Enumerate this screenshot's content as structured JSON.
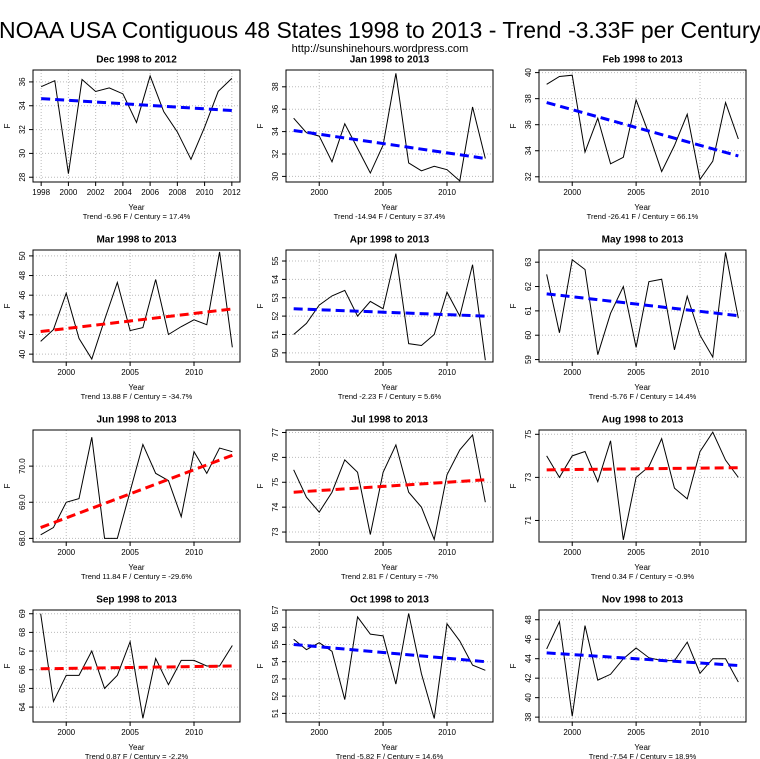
{
  "title": "NOAA USA Contiguous 48 States 1998 to 2013 - Trend -3.33F per Century",
  "subtitle": "http://sunshinehours.wordpress.com",
  "chart_data": [
    {
      "type": "line",
      "title": "Dec 1998 to 2012",
      "xlabel": "Year",
      "ylabel": "F",
      "grid": true,
      "color": "#000000",
      "x": [
        1998,
        1999,
        2000,
        2001,
        2002,
        2003,
        2004,
        2005,
        2006,
        2007,
        2008,
        2009,
        2010,
        2011,
        2012
      ],
      "values": [
        35.6,
        36.1,
        28.3,
        36.2,
        35.2,
        35.5,
        35.0,
        32.6,
        36.5,
        33.5,
        31.8,
        29.5,
        32.2,
        35.2,
        36.3
      ],
      "trend": {
        "x": [
          1998,
          2012
        ],
        "values": [
          34.6,
          33.6
        ],
        "color": "#0000ff"
      },
      "note": "Trend -6.96 F / Century = 17.4%",
      "xlim": [
        1997.4,
        2012.6
      ],
      "xticks": [
        1998,
        2000,
        2002,
        2004,
        2006,
        2008,
        2010,
        2012
      ],
      "ylim": [
        27.6,
        37.0
      ],
      "yticks": [
        28,
        30,
        32,
        34,
        36
      ]
    },
    {
      "type": "line",
      "title": "Jan 1998 to 2013",
      "xlabel": "Year",
      "ylabel": "F",
      "grid": true,
      "color": "#000000",
      "x": [
        1998,
        1999,
        2000,
        2001,
        2002,
        2003,
        2004,
        2005,
        2006,
        2007,
        2008,
        2009,
        2010,
        2011,
        2012,
        2013
      ],
      "values": [
        35.2,
        33.9,
        33.6,
        31.3,
        34.7,
        32.5,
        30.3,
        32.8,
        39.2,
        31.2,
        30.5,
        30.9,
        30.6,
        29.6,
        36.2,
        31.6
      ],
      "trend": {
        "x": [
          1998,
          2013
        ],
        "values": [
          34.1,
          31.6
        ],
        "color": "#0000ff"
      },
      "note": "Trend -14.94 F / Century = 37.4%",
      "xlim": [
        1997.4,
        2013.6
      ],
      "xticks": [
        2000,
        2005,
        2010
      ],
      "ylim": [
        29.5,
        39.5
      ],
      "yticks": [
        30,
        32,
        34,
        36,
        38
      ]
    },
    {
      "type": "line",
      "title": "Feb 1998 to 2013",
      "xlabel": "Year",
      "ylabel": "F",
      "grid": true,
      "color": "#000000",
      "x": [
        1998,
        1999,
        2000,
        2001,
        2002,
        2003,
        2004,
        2005,
        2006,
        2007,
        2008,
        2009,
        2010,
        2011,
        2012,
        2013
      ],
      "values": [
        39.1,
        39.7,
        39.8,
        33.9,
        36.5,
        33.0,
        33.5,
        37.9,
        35.3,
        32.4,
        34.4,
        36.8,
        31.8,
        33.2,
        37.7,
        34.9
      ],
      "trend": {
        "x": [
          1998,
          2013
        ],
        "values": [
          37.7,
          33.6
        ],
        "color": "#0000ff"
      },
      "note": "Trend -26.41 F / Century = 66.1%",
      "xlim": [
        1997.4,
        2013.6
      ],
      "xticks": [
        2000,
        2005,
        2010
      ],
      "ylim": [
        31.6,
        40.2
      ],
      "yticks": [
        32,
        34,
        36,
        38,
        40
      ]
    },
    {
      "type": "line",
      "title": "Mar 1998 to 2013",
      "xlabel": "Year",
      "ylabel": "F",
      "grid": true,
      "color": "#000000",
      "x": [
        1998,
        1999,
        2000,
        2001,
        2002,
        2003,
        2004,
        2005,
        2006,
        2007,
        2008,
        2009,
        2010,
        2011,
        2012,
        2013
      ],
      "values": [
        41.3,
        42.5,
        46.2,
        41.6,
        39.5,
        43.5,
        47.3,
        42.4,
        42.7,
        47.6,
        42.0,
        42.8,
        43.5,
        43.0,
        50.4,
        40.7
      ],
      "trend": {
        "x": [
          1998,
          2013
        ],
        "values": [
          42.3,
          44.6
        ],
        "color": "#ff0000"
      },
      "note": "Trend 13.88 F / Century = -34.7%",
      "xlim": [
        1997.4,
        2013.6
      ],
      "xticks": [
        2000,
        2005,
        2010
      ],
      "ylim": [
        39.2,
        50.6
      ],
      "yticks": [
        40,
        42,
        44,
        46,
        48,
        50
      ]
    },
    {
      "type": "line",
      "title": "Apr 1998 to 2013",
      "xlabel": "Year",
      "ylabel": "F",
      "grid": true,
      "color": "#000000",
      "x": [
        1998,
        1999,
        2000,
        2001,
        2002,
        2003,
        2004,
        2005,
        2006,
        2007,
        2008,
        2009,
        2010,
        2011,
        2012,
        2013
      ],
      "values": [
        51.0,
        51.6,
        52.6,
        53.1,
        53.4,
        52.0,
        52.8,
        52.4,
        55.4,
        50.5,
        50.4,
        51.0,
        53.3,
        52.0,
        54.8,
        49.6
      ],
      "trend": {
        "x": [
          1998,
          2013
        ],
        "values": [
          52.4,
          52.0
        ],
        "color": "#0000ff"
      },
      "note": "Trend -2.23 F / Century = 5.6%",
      "xlim": [
        1997.4,
        2013.6
      ],
      "xticks": [
        2000,
        2005,
        2010
      ],
      "ylim": [
        49.5,
        55.6
      ],
      "yticks": [
        50,
        51,
        52,
        53,
        54,
        55
      ]
    },
    {
      "type": "line",
      "title": "May 1998 to 2013",
      "xlabel": "Year",
      "ylabel": "F",
      "grid": true,
      "color": "#000000",
      "x": [
        1998,
        1999,
        2000,
        2001,
        2002,
        2003,
        2004,
        2005,
        2006,
        2007,
        2008,
        2009,
        2010,
        2011,
        2012,
        2013
      ],
      "values": [
        62.5,
        60.1,
        63.1,
        62.7,
        59.2,
        60.9,
        62.0,
        59.5,
        62.2,
        62.3,
        59.4,
        61.6,
        60.0,
        59.1,
        63.4,
        60.7
      ],
      "trend": {
        "x": [
          1998,
          2013
        ],
        "values": [
          61.7,
          60.8
        ],
        "color": "#0000ff"
      },
      "note": "Trend -5.76 F / Century = 14.4%",
      "xlim": [
        1997.4,
        2013.6
      ],
      "xticks": [
        2000,
        2005,
        2010
      ],
      "ylim": [
        58.9,
        63.5
      ],
      "yticks": [
        59,
        60,
        61,
        62,
        63
      ]
    },
    {
      "type": "line",
      "title": "Jun 1998 to 2013",
      "xlabel": "Year",
      "ylabel": "F",
      "grid": true,
      "color": "#000000",
      "x": [
        1998,
        1999,
        2000,
        2001,
        2002,
        2003,
        2004,
        2005,
        2006,
        2007,
        2008,
        2009,
        2010,
        2011,
        2012,
        2013
      ],
      "values": [
        68.1,
        68.3,
        69.0,
        69.1,
        70.8,
        68.0,
        68.0,
        69.3,
        70.6,
        69.8,
        69.6,
        68.6,
        70.4,
        69.8,
        70.5,
        70.4
      ],
      "trend": {
        "x": [
          1998,
          2013
        ],
        "values": [
          68.3,
          70.3
        ],
        "color": "#ff0000"
      },
      "note": "Trend 11.84 F / Century = -29.6%",
      "xlim": [
        1997.4,
        2013.6
      ],
      "xticks": [
        2000,
        2005,
        2010
      ],
      "ylim": [
        67.9,
        71.0
      ],
      "yticks": [
        {
          "value": 68,
          "label": "68.0"
        },
        {
          "value": 69,
          "label": "69.0"
        },
        {
          "value": 70,
          "label": "70.0"
        }
      ]
    },
    {
      "type": "line",
      "title": "Jul 1998 to 2013",
      "xlabel": "Year",
      "ylabel": "F",
      "grid": true,
      "color": "#000000",
      "x": [
        1998,
        1999,
        2000,
        2001,
        2002,
        2003,
        2004,
        2005,
        2006,
        2007,
        2008,
        2009,
        2010,
        2011,
        2012,
        2013
      ],
      "values": [
        75.5,
        74.4,
        73.8,
        74.6,
        75.9,
        75.4,
        72.9,
        75.4,
        76.5,
        74.6,
        74.0,
        72.7,
        75.3,
        76.3,
        76.9,
        74.2
      ],
      "trend": {
        "x": [
          1998,
          2013
        ],
        "values": [
          74.6,
          75.1
        ],
        "color": "#ff0000"
      },
      "note": "Trend 2.81 F / Century = -7%",
      "xlim": [
        1997.4,
        2013.6
      ],
      "xticks": [
        2000,
        2005,
        2010
      ],
      "ylim": [
        72.6,
        77.1
      ],
      "yticks": [
        73,
        74,
        75,
        76,
        77
      ]
    },
    {
      "type": "line",
      "title": "Aug 1998 to 2013",
      "xlabel": "Year",
      "ylabel": "F",
      "grid": true,
      "color": "#000000",
      "x": [
        1998,
        1999,
        2000,
        2001,
        2002,
        2003,
        2004,
        2005,
        2006,
        2007,
        2008,
        2009,
        2010,
        2011,
        2012,
        2013
      ],
      "values": [
        74.0,
        73.0,
        74.0,
        74.2,
        72.8,
        74.7,
        70.1,
        73.0,
        73.5,
        74.8,
        72.5,
        72.0,
        74.2,
        75.1,
        73.8,
        73.0
      ],
      "trend": {
        "x": [
          1998,
          2013
        ],
        "values": [
          73.35,
          73.45
        ],
        "color": "#ff0000"
      },
      "note": "Trend 0.34 F / Century = -0.9%",
      "xlim": [
        1997.4,
        2013.6
      ],
      "xticks": [
        2000,
        2005,
        2010
      ],
      "ylim": [
        70.0,
        75.2
      ],
      "yticks": [
        71,
        73,
        75
      ]
    },
    {
      "type": "line",
      "title": "Sep 1998 to 2013",
      "xlabel": "Year",
      "ylabel": "F",
      "grid": true,
      "color": "#000000",
      "x": [
        1998,
        1999,
        2000,
        2001,
        2002,
        2003,
        2004,
        2005,
        2006,
        2007,
        2008,
        2009,
        2010,
        2011,
        2012,
        2013
      ],
      "values": [
        69.0,
        64.3,
        65.7,
        65.7,
        67.0,
        65.0,
        65.7,
        67.5,
        63.4,
        66.6,
        65.2,
        66.5,
        66.5,
        66.2,
        66.2,
        67.3
      ],
      "trend": {
        "x": [
          1998,
          2013
        ],
        "values": [
          66.05,
          66.2
        ],
        "color": "#ff0000"
      },
      "note": "Trend 0.87 F / Century = -2.2%",
      "xlim": [
        1997.4,
        2013.6
      ],
      "xticks": [
        2000,
        2005,
        2010
      ],
      "ylim": [
        63.2,
        69.2
      ],
      "yticks": [
        64,
        65,
        66,
        67,
        68,
        69
      ]
    },
    {
      "type": "line",
      "title": "Oct 1998 to 2013",
      "xlabel": "Year",
      "ylabel": "F",
      "grid": true,
      "color": "#000000",
      "x": [
        1998,
        1999,
        2000,
        2001,
        2002,
        2003,
        2004,
        2005,
        2006,
        2007,
        2008,
        2009,
        2010,
        2011,
        2012,
        2013
      ],
      "values": [
        55.3,
        54.7,
        55.1,
        54.6,
        51.8,
        56.6,
        55.6,
        55.5,
        52.7,
        56.8,
        53.3,
        50.7,
        56.2,
        55.2,
        53.8,
        53.5
      ],
      "trend": {
        "x": [
          1998,
          2013
        ],
        "values": [
          55.0,
          54.0
        ],
        "color": "#0000ff"
      },
      "note": "Trend -5.82 F / Century = 14.6%",
      "xlim": [
        1997.4,
        2013.6
      ],
      "xticks": [
        2000,
        2005,
        2010
      ],
      "ylim": [
        50.5,
        57.0
      ],
      "yticks": [
        51,
        52,
        53,
        54,
        55,
        56,
        57
      ]
    },
    {
      "type": "line",
      "title": "Nov 1998 to 2013",
      "xlabel": "Year",
      "ylabel": "F",
      "grid": true,
      "color": "#000000",
      "x": [
        1998,
        1999,
        2000,
        2001,
        2002,
        2003,
        2004,
        2005,
        2006,
        2007,
        2008,
        2009,
        2010,
        2011,
        2012,
        2013
      ],
      "values": [
        45.0,
        47.8,
        38.1,
        47.4,
        41.8,
        42.4,
        44.0,
        45.1,
        44.1,
        43.8,
        43.8,
        45.7,
        42.5,
        44.0,
        44.0,
        41.6
      ],
      "trend": {
        "x": [
          1998,
          2013
        ],
        "values": [
          44.6,
          43.3
        ],
        "color": "#0000ff"
      },
      "note": "Trend -7.54 F / Century = 18.9%",
      "xlim": [
        1997.4,
        2013.6
      ],
      "xticks": [
        2000,
        2005,
        2010
      ],
      "ylim": [
        37.5,
        49.0
      ],
      "yticks": [
        38,
        40,
        42,
        44,
        46,
        48
      ]
    }
  ]
}
